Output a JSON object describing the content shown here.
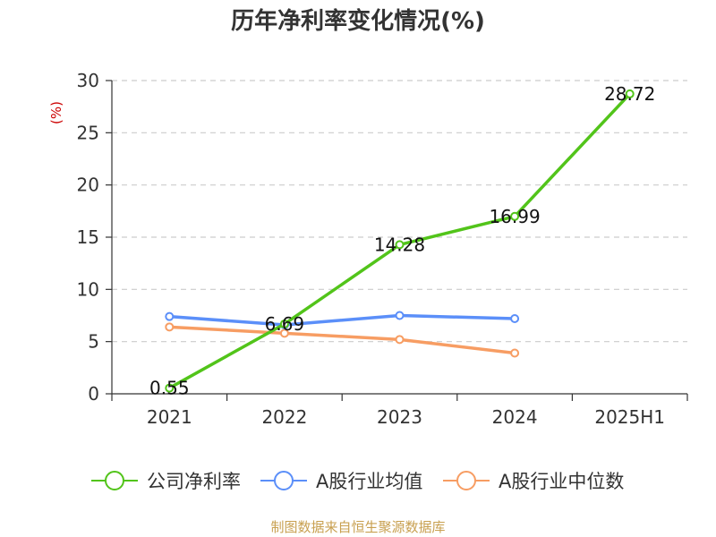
{
  "chart_data": {
    "type": "line",
    "title": "历年净利率变化情况(%)",
    "ylabel": "(%)",
    "categories": [
      "2021",
      "2022",
      "2023",
      "2024",
      "2025H1"
    ],
    "ylim": [
      0,
      30
    ],
    "yticks": [
      0,
      5,
      10,
      15,
      20,
      25,
      30
    ],
    "grid": true,
    "legend_position": "bottom",
    "series": [
      {
        "name": "公司净利率",
        "color": "#52c41a",
        "values": [
          0.55,
          6.69,
          14.28,
          16.99,
          28.72
        ],
        "labels": [
          "0.55",
          "6.69",
          "14.28",
          "16.99",
          "28.72"
        ]
      },
      {
        "name": "A股行业均值",
        "color": "#5b8ff9",
        "values": [
          7.4,
          6.6,
          7.5,
          7.2,
          null
        ]
      },
      {
        "name": "A股行业中位数",
        "color": "#f79d63",
        "values": [
          6.4,
          5.8,
          5.2,
          3.9,
          null
        ]
      }
    ]
  },
  "source": "制图数据来自恒生聚源数据库"
}
